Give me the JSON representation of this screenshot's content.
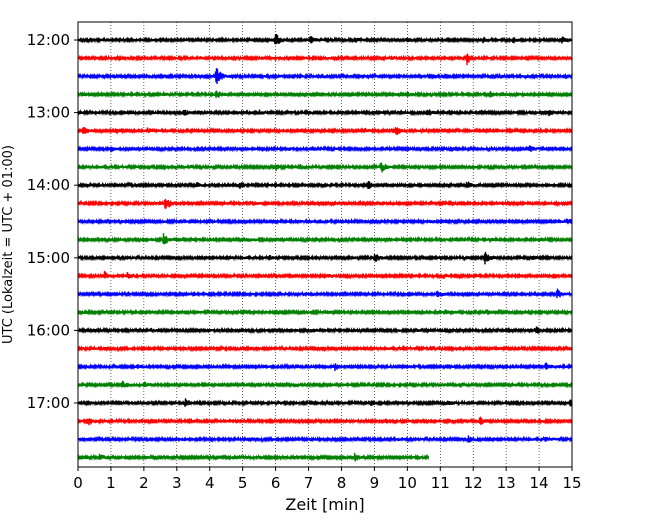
{
  "chart_data": {
    "type": "line",
    "title": "",
    "xlabel": "Zeit  [min]",
    "ylabel": "UTC (Lokalzeit = UTC + 01:00)",
    "xlim": [
      0,
      15
    ],
    "xticks": [
      "0",
      "1",
      "2",
      "3",
      "4",
      "5",
      "6",
      "7",
      "8",
      "9",
      "10",
      "11",
      "12",
      "13",
      "14",
      "15"
    ],
    "yticks": [
      {
        "label": "12:00",
        "row": 0
      },
      {
        "label": "13:00",
        "row": 4
      },
      {
        "label": "14:00",
        "row": 8
      },
      {
        "label": "15:00",
        "row": 12
      },
      {
        "label": "16:00",
        "row": 16
      },
      {
        "label": "17:00",
        "row": 20
      }
    ],
    "grid_x": true,
    "row_minutes": 15,
    "trace_colors": [
      "#000000",
      "#ff0000",
      "#0000ff",
      "#008000"
    ],
    "traces": [
      {
        "start": "12:00",
        "color": "#000000",
        "end_min": 15,
        "events": [
          [
            6.0,
            1.0
          ],
          [
            7.05,
            0.5
          ],
          [
            8.4,
            0.3
          ],
          [
            10.0,
            0.35
          ],
          [
            12.3,
            0.3
          ],
          [
            13.2,
            0.35
          ],
          [
            14.7,
            0.4
          ]
        ]
      },
      {
        "start": "12:15",
        "color": "#ff0000",
        "end_min": 15,
        "events": [
          [
            11.8,
            0.9
          ],
          [
            3.7,
            0.2
          ],
          [
            9.5,
            0.2
          ]
        ]
      },
      {
        "start": "12:30",
        "color": "#0000ff",
        "end_min": 15,
        "events": [
          [
            4.2,
            1.3
          ],
          [
            1.2,
            0.2
          ],
          [
            7.4,
            0.2
          ],
          [
            12.8,
            0.2
          ]
        ]
      },
      {
        "start": "12:45",
        "color": "#008000",
        "end_min": 15,
        "events": [
          [
            4.2,
            0.6
          ],
          [
            2.6,
            0.35
          ],
          [
            12.5,
            0.3
          ],
          [
            10.0,
            0.25
          ]
        ]
      },
      {
        "start": "13:00",
        "color": "#000000",
        "end_min": 15,
        "events": [
          [
            3.2,
            0.45
          ],
          [
            10.6,
            0.45
          ],
          [
            14.3,
            0.35
          ],
          [
            5.5,
            0.25
          ]
        ]
      },
      {
        "start": "13:15",
        "color": "#ff0000",
        "end_min": 15,
        "events": [
          [
            0.15,
            0.6
          ],
          [
            1.15,
            0.4
          ],
          [
            2.1,
            0.3
          ],
          [
            8.7,
            0.3
          ],
          [
            9.65,
            0.7
          ]
        ]
      },
      {
        "start": "13:30",
        "color": "#0000ff",
        "end_min": 15,
        "events": [
          [
            1.0,
            0.25
          ],
          [
            11.3,
            0.3
          ],
          [
            13.7,
            0.4
          ],
          [
            6.3,
            0.2
          ]
        ]
      },
      {
        "start": "13:45",
        "color": "#008000",
        "end_min": 15,
        "events": [
          [
            6.0,
            0.4
          ],
          [
            6.7,
            0.45
          ],
          [
            9.2,
            0.7
          ],
          [
            3.4,
            0.2
          ]
        ]
      },
      {
        "start": "14:00",
        "color": "#000000",
        "end_min": 15,
        "events": [
          [
            3.6,
            0.3
          ],
          [
            4.9,
            0.45
          ],
          [
            8.8,
            0.55
          ],
          [
            11.8,
            0.45
          ],
          [
            15.0,
            0.5
          ],
          [
            6.8,
            0.25
          ]
        ]
      },
      {
        "start": "14:15",
        "color": "#ff0000",
        "end_min": 15,
        "events": [
          [
            2.65,
            0.9
          ],
          [
            9.15,
            0.3
          ],
          [
            5.3,
            0.2
          ],
          [
            12.7,
            0.2
          ]
        ]
      },
      {
        "start": "14:30",
        "color": "#0000ff",
        "end_min": 15,
        "events": [
          [
            14.85,
            0.45
          ],
          [
            7.3,
            0.2
          ],
          [
            10.7,
            0.2
          ]
        ]
      },
      {
        "start": "14:45",
        "color": "#008000",
        "end_min": 15,
        "events": [
          [
            2.6,
            0.8
          ],
          [
            12.5,
            0.3
          ],
          [
            14.0,
            0.25
          ],
          [
            5.1,
            0.2
          ]
        ]
      },
      {
        "start": "15:00",
        "color": "#000000",
        "end_min": 15,
        "events": [
          [
            9.0,
            0.6
          ],
          [
            12.35,
            0.75
          ],
          [
            13.8,
            0.3
          ],
          [
            5.8,
            0.25
          ]
        ]
      },
      {
        "start": "15:15",
        "color": "#ff0000",
        "end_min": 15,
        "events": [
          [
            0.8,
            0.55
          ],
          [
            1.5,
            0.35
          ],
          [
            7.6,
            0.25
          ],
          [
            11.1,
            0.25
          ]
        ]
      },
      {
        "start": "15:30",
        "color": "#0000ff",
        "end_min": 15,
        "events": [
          [
            10.9,
            0.4
          ],
          [
            14.55,
            0.6
          ],
          [
            3.5,
            0.2
          ],
          [
            6.9,
            0.2
          ]
        ]
      },
      {
        "start": "15:45",
        "color": "#008000",
        "end_min": 15,
        "events": [
          [
            5.0,
            0.3
          ],
          [
            7.5,
            0.25
          ],
          [
            11.1,
            0.3
          ],
          [
            12.4,
            0.25
          ]
        ]
      },
      {
        "start": "16:00",
        "color": "#000000",
        "end_min": 15,
        "events": [
          [
            7.1,
            0.3
          ],
          [
            13.9,
            0.5
          ],
          [
            2.2,
            0.2
          ],
          [
            10.3,
            0.2
          ]
        ]
      },
      {
        "start": "16:15",
        "color": "#ff0000",
        "end_min": 15,
        "events": [
          [
            10.7,
            0.35
          ],
          [
            12.5,
            0.25
          ],
          [
            4.1,
            0.2
          ]
        ]
      },
      {
        "start": "16:30",
        "color": "#0000ff",
        "end_min": 15,
        "events": [
          [
            7.8,
            0.4
          ],
          [
            14.2,
            0.5
          ],
          [
            1.8,
            0.2
          ],
          [
            10.0,
            0.2
          ]
        ]
      },
      {
        "start": "16:45",
        "color": "#008000",
        "end_min": 15,
        "events": [
          [
            1.35,
            0.4
          ],
          [
            2.0,
            0.35
          ],
          [
            6.6,
            0.2
          ],
          [
            11.6,
            0.25
          ]
        ]
      },
      {
        "start": "17:00",
        "color": "#000000",
        "end_min": 15,
        "events": [
          [
            3.25,
            0.45
          ],
          [
            8.9,
            0.3
          ],
          [
            14.95,
            0.5
          ],
          [
            11.2,
            0.3
          ],
          [
            6.0,
            0.2
          ]
        ]
      },
      {
        "start": "17:15",
        "color": "#ff0000",
        "end_min": 15,
        "events": [
          [
            0.3,
            0.6
          ],
          [
            12.2,
            0.45
          ],
          [
            8.1,
            0.2
          ],
          [
            4.6,
            0.2
          ]
        ]
      },
      {
        "start": "17:30",
        "color": "#0000ff",
        "end_min": 15,
        "events": [
          [
            11.85,
            0.4
          ],
          [
            3.0,
            0.2
          ],
          [
            9.6,
            0.2
          ],
          [
            14.2,
            0.2
          ]
        ]
      },
      {
        "start": "17:45",
        "color": "#008000",
        "end_min": 10.65,
        "events": [
          [
            0.65,
            0.35
          ],
          [
            8.4,
            0.45
          ],
          [
            4.9,
            0.2
          ]
        ]
      }
    ]
  }
}
